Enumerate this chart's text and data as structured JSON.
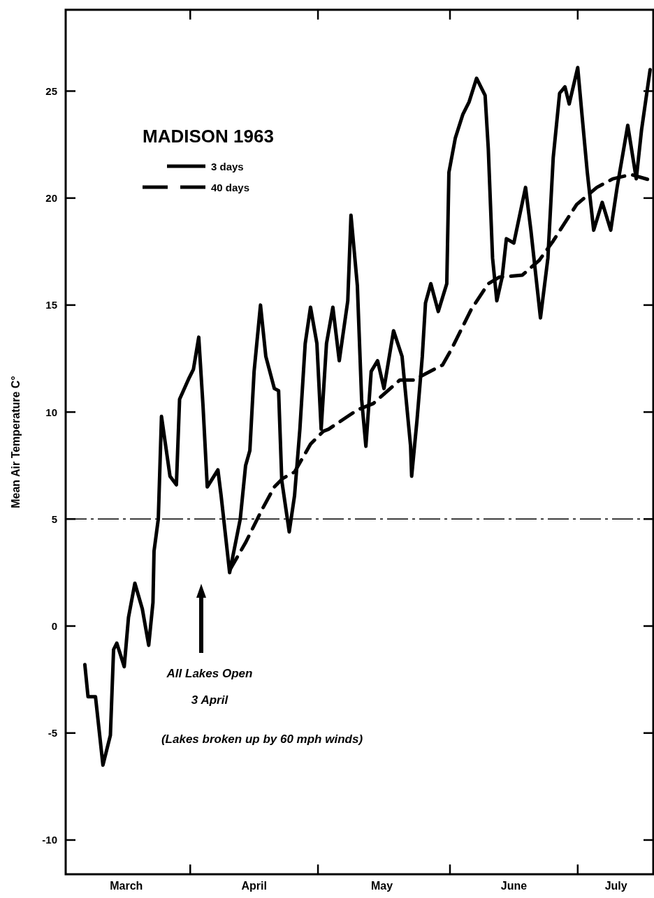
{
  "chart_data": {
    "type": "line",
    "ylabel": "Mean Air Temperature C°",
    "legend_title": "MADISON 1963",
    "legend": "top left",
    "grid": false,
    "xlim": [
      "1963-03-02T18:00",
      "1963-07-18T18:00"
    ],
    "xticks": [
      {
        "value": "1963-03-17",
        "label": "March"
      },
      {
        "value": "1963-04-01",
        "label": null
      },
      {
        "value": "1963-04-16",
        "label": "April"
      },
      {
        "value": "1963-05-01",
        "label": null
      },
      {
        "value": "1963-05-16",
        "label": "May"
      },
      {
        "value": "1963-06-01",
        "label": null
      },
      {
        "value": "1963-06-16",
        "label": "June"
      },
      {
        "value": "1963-07-01",
        "label": null
      },
      {
        "value": "1963-07-10",
        "label": "July"
      }
    ],
    "ylim": [
      -11.6,
      28.8
    ],
    "yticks": [
      -10,
      -5,
      0,
      5,
      10,
      15,
      20,
      25
    ],
    "ref_lines": [
      {
        "axis": "y",
        "value": 5,
        "line_style": "dashed",
        "color": "#000000"
      }
    ],
    "annotations": [
      "All Lakes Open",
      "3 April",
      "(Lakes broken up by 60 mph winds)"
    ],
    "series": [
      {
        "name": "3 days",
        "color": "#000000",
        "line_style": "solid",
        "x": [
          "1963-03-07T06:00",
          "1963-03-08T00:00",
          "1963-03-09T18:00",
          "1963-03-11T12:00",
          "1963-03-13T06:00",
          "1963-03-14T00:00",
          "1963-03-14T18:00",
          "1963-03-16T12:00",
          "1963-03-17T12:00",
          "1963-03-19T00:00",
          "1963-03-20T18:00",
          "1963-03-22T06:00",
          "1963-03-23T06:00",
          "1963-03-23T12:00",
          "1963-03-24T12:00",
          "1963-03-25T06:00",
          "1963-03-26T06:00",
          "1963-03-27T06:00",
          "1963-03-28T18:00",
          "1963-03-29T12:00",
          "1963-03-31T18:00",
          "1963-04-01T18:00",
          "1963-04-03T00:00",
          "1963-04-04T00:00",
          "1963-04-05T00:00",
          "1963-04-07T12:00",
          "1963-04-08T06:00",
          "1963-04-10T06:00",
          "1963-04-12T18:00",
          "1963-04-14T00:00",
          "1963-04-15T00:00",
          "1963-04-16T00:00",
          "1963-04-17T12:00",
          "1963-04-18T18:00",
          "1963-04-20T18:00",
          "1963-04-21T18:00",
          "1963-04-22T12:00",
          "1963-04-24T06:00",
          "1963-04-25T12:00",
          "1963-04-26T18:00",
          "1963-04-28T00:00",
          "1963-04-29T06:00",
          "1963-04-30T18:00",
          "1963-05-01T18:00",
          "1963-05-03T00:00",
          "1963-05-04T12:00",
          "1963-05-06T00:00",
          "1963-05-08T00:00",
          "1963-05-08T18:00",
          "1963-05-10T06:00",
          "1963-05-11T06:00",
          "1963-05-12T06:00",
          "1963-05-13T12:00",
          "1963-05-15T00:00",
          "1963-05-16T12:00",
          "1963-05-18T18:00",
          "1963-05-20T18:00",
          "1963-05-22T18:00",
          "1963-05-23T00:00",
          "1963-05-24T06:00",
          "1963-05-25T12:00",
          "1963-05-26T06:00",
          "1963-05-27T12:00",
          "1963-05-29T06:00",
          "1963-05-31T06:00",
          "1963-05-31T18:00",
          "1963-06-02T06:00",
          "1963-06-04T00:00",
          "1963-06-05T12:00",
          "1963-06-07T06:00",
          "1963-06-09T06:00",
          "1963-06-10T00:00",
          "1963-06-11T00:00",
          "1963-06-12T00:00",
          "1963-06-13T06:00",
          "1963-06-14T06:00",
          "1963-06-16T00:00",
          "1963-06-18T18:00",
          "1963-06-20T00:00",
          "1963-06-22T06:00",
          "1963-06-24T00:00",
          "1963-06-25T06:00",
          "1963-06-26T18:00",
          "1963-06-28T00:00",
          "1963-06-29T00:00",
          "1963-07-01T00:00",
          "1963-07-02T00:00",
          "1963-07-03T06:00",
          "1963-07-04T18:00",
          "1963-07-06T18:00",
          "1963-07-08T18:00",
          "1963-07-10T06:00",
          "1963-07-12T18:00",
          "1963-07-14T18:00",
          "1963-07-16T00:00",
          "1963-07-18T00:00"
        ],
        "values": [
          -1.8,
          -3.3,
          -3.3,
          -6.5,
          -5.1,
          -1.1,
          -0.8,
          -1.9,
          0.4,
          2.0,
          0.8,
          -0.9,
          1.1,
          3.5,
          5.0,
          9.8,
          8.4,
          7.0,
          6.6,
          10.6,
          11.6,
          12.0,
          13.5,
          10.3,
          6.5,
          7.3,
          6.1,
          2.5,
          5.0,
          7.5,
          8.2,
          11.9,
          15.0,
          12.6,
          11.1,
          11.0,
          6.8,
          4.4,
          6.1,
          9.2,
          13.2,
          14.9,
          13.2,
          9.2,
          13.2,
          14.9,
          12.4,
          15.2,
          19.2,
          15.9,
          10.6,
          8.4,
          11.9,
          12.4,
          11.1,
          13.8,
          12.6,
          8.4,
          7.0,
          9.6,
          12.6,
          15.1,
          16.0,
          14.7,
          16.0,
          21.2,
          22.8,
          23.9,
          24.5,
          25.6,
          24.8,
          22.3,
          17.2,
          15.2,
          16.3,
          18.1,
          17.9,
          20.5,
          18.5,
          14.4,
          17.2,
          21.9,
          24.9,
          25.2,
          24.4,
          26.1,
          23.9,
          21.2,
          18.5,
          19.8,
          18.5,
          20.5,
          23.4,
          20.9,
          23.2,
          26.0
        ]
      },
      {
        "name": "40 days",
        "color": "#000000",
        "line_style": "dashed",
        "x": [
          "1963-04-10T06:00",
          "1963-04-14T00:00",
          "1963-04-17T18:00",
          "1963-04-20T18:00",
          "1963-04-22T18:00",
          "1963-04-25T12:00",
          "1963-04-29T06:00",
          "1963-05-02T06:00",
          "1963-05-03T12:00",
          "1963-05-10T06:00",
          "1963-05-14T00:00",
          "1963-05-20T06:00",
          "1963-05-23T12:00",
          "1963-05-30T06:00",
          "1963-06-01T06:00",
          "1963-06-06T00:00",
          "1963-06-10T00:00",
          "1963-06-12T12:00",
          "1963-06-18T00:00",
          "1963-06-22T00:00",
          "1963-06-25T06:00",
          "1963-06-30T18:00",
          "1963-07-05T12:00",
          "1963-07-09T06:00",
          "1963-07-13T12:00",
          "1963-07-18T18:00"
        ],
        "values": [
          2.6,
          3.9,
          5.4,
          6.5,
          6.9,
          7.2,
          8.5,
          9.1,
          9.2,
          10.1,
          10.4,
          11.5,
          11.5,
          12.2,
          12.9,
          14.8,
          16.0,
          16.3,
          16.4,
          17.1,
          18.0,
          19.7,
          20.5,
          20.9,
          21.1,
          20.8
        ]
      }
    ]
  }
}
